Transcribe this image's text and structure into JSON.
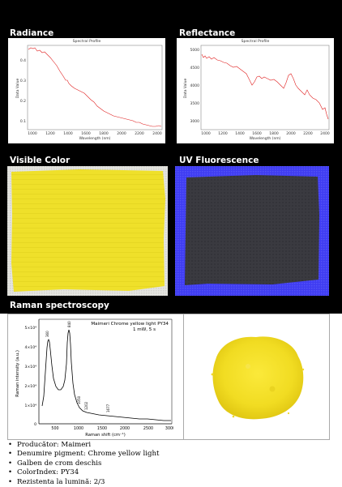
{
  "sections": {
    "radiance": "Radiance",
    "reflectance": "Reflectance",
    "visible": "Visible Color",
    "uv": "UV Fluorescence",
    "raman": "Raman spectroscopy"
  },
  "radiance_plot": {
    "title": "Spectral Profile",
    "ylabel": "Data Value",
    "xlabel": "Wavelength (nm)",
    "yticks": [
      "0.4",
      "0.3",
      "0.2",
      "0.1"
    ],
    "xticks": [
      "1000",
      "1200",
      "1400",
      "1600",
      "1800",
      "2000",
      "2200",
      "2400"
    ]
  },
  "reflectance_plot": {
    "title": "Spectral Profile",
    "ylabel": "Data Value",
    "xlabel": "Wavelength (nm)",
    "yticks": [
      "5000",
      "4500",
      "4000",
      "3500",
      "3000"
    ],
    "xticks": [
      "1000",
      "1200",
      "1400",
      "1600",
      "1800",
      "2000",
      "2200",
      "2400"
    ]
  },
  "raman_plot": {
    "title_line1": "Maimeri Chrome yellow light PY34",
    "title_line2": "1 mW, 5 s",
    "ylabel": "Raman intensity (a.u.)",
    "xlabel": "Raman shift (cm⁻¹)",
    "yticks": [
      "5×10⁴",
      "4×10⁴",
      "3×10⁴",
      "2×10⁴",
      "1×10⁴",
      "0"
    ],
    "xticks": [
      "500",
      "1000",
      "1500",
      "2000",
      "2500",
      "3000"
    ],
    "peak_labels": [
      "360",
      "840",
      "1050",
      "1202",
      "1677"
    ]
  },
  "colors": {
    "pigment_yellow": "#efe02a",
    "uv_blue": "#3d3af0",
    "uv_dark": "#3a3a40",
    "spectrum_line": "#e02020",
    "header_bg": "#000000"
  },
  "info": {
    "producer": "Producător: Maimeri",
    "name": "Denumire pigment: Chrome yellow light",
    "ro_name": "Galben de crom deschis",
    "color_index": "ColorIndex: PY34",
    "lightfastness": "Rezistenta la lumină:  2/3"
  }
}
